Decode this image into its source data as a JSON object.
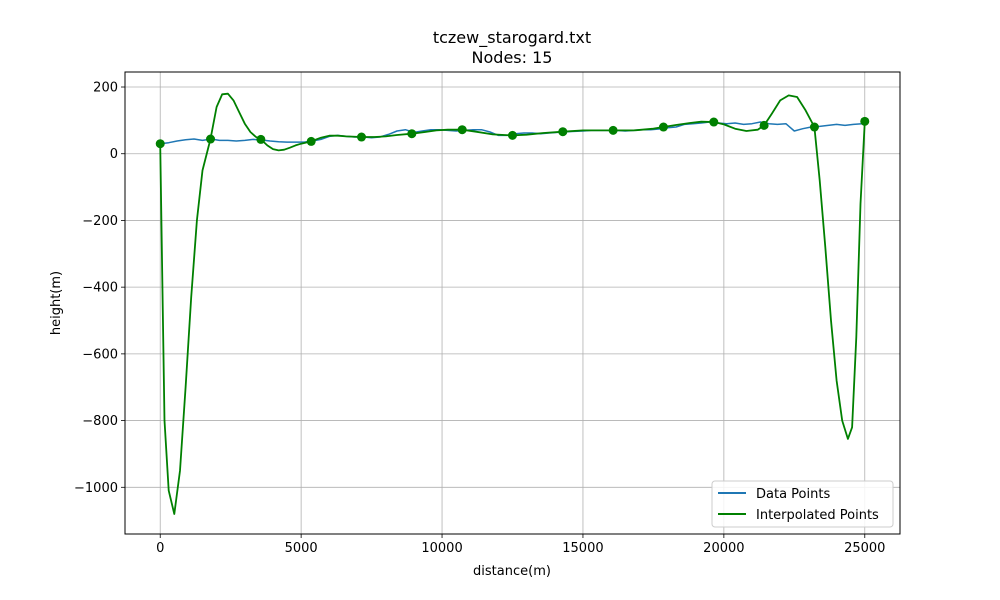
{
  "chart_data": {
    "type": "line",
    "title": "tczew_starogard.txt",
    "subtitle": "Nodes: 15",
    "xlabel": "distance(m)",
    "ylabel": "height(m)",
    "xlim": [
      -1250,
      26250
    ],
    "ylim": [
      -1140,
      245
    ],
    "x_ticks": [
      0,
      5000,
      10000,
      15000,
      20000,
      25000
    ],
    "y_ticks": [
      200,
      0,
      -200,
      -400,
      -600,
      -800,
      -1000
    ],
    "grid": true,
    "legend": "lower-right",
    "colors": {
      "data_points": "#1f77b4",
      "interpolated": "#008000",
      "grid": "#b0b0b0"
    },
    "series": [
      {
        "name": "Data Points",
        "x": [
          0,
          300,
          600,
          900,
          1200,
          1500,
          1800,
          2100,
          2400,
          2700,
          3000,
          3300,
          3600,
          3900,
          4200,
          4500,
          4800,
          5100,
          5400,
          5700,
          6000,
          6300,
          6600,
          6900,
          7200,
          7500,
          7800,
          8100,
          8400,
          8700,
          9000,
          9300,
          9600,
          9900,
          10200,
          10500,
          10800,
          11100,
          11400,
          11700,
          12000,
          12300,
          12600,
          12900,
          13200,
          13500,
          13800,
          14100,
          14400,
          14700,
          15000,
          15300,
          15600,
          15900,
          16200,
          16500,
          16800,
          17100,
          17400,
          17700,
          18000,
          18300,
          18600,
          18900,
          19200,
          19500,
          19800,
          20100,
          20400,
          20700,
          21000,
          21300,
          21600,
          21900,
          22200,
          22500,
          22800,
          23100,
          23400,
          23700,
          24000,
          24300,
          24600,
          24900,
          25000
        ],
        "y": [
          30,
          33,
          38,
          42,
          44,
          40,
          44,
          40,
          40,
          38,
          40,
          43,
          41,
          38,
          36,
          35,
          35,
          35,
          38,
          43,
          52,
          55,
          52,
          50,
          50,
          48,
          50,
          58,
          68,
          72,
          64,
          68,
          72,
          72,
          70,
          68,
          70,
          72,
          72,
          65,
          55,
          55,
          60,
          62,
          62,
          60,
          62,
          64,
          66,
          67,
          68,
          70,
          70,
          70,
          70,
          68,
          70,
          72,
          72,
          74,
          78,
          80,
          88,
          90,
          92,
          95,
          92,
          90,
          92,
          88,
          90,
          95,
          90,
          88,
          90,
          68,
          75,
          80,
          82,
          85,
          88,
          85,
          88,
          90,
          97
        ]
      },
      {
        "name": "Interpolated Points",
        "nodes_x": [
          0,
          1785,
          3571,
          5357,
          7142,
          8928,
          10714,
          12500,
          14285,
          16071,
          17857,
          19642,
          21428,
          23214,
          25000
        ],
        "nodes_y": [
          30,
          44,
          43,
          37,
          50,
          60,
          72,
          55,
          66,
          70,
          80,
          95,
          85,
          80,
          97
        ],
        "x": [
          0,
          150,
          300,
          500,
          700,
          900,
          1100,
          1300,
          1500,
          1785,
          2000,
          2200,
          2400,
          2600,
          2800,
          3000,
          3200,
          3400,
          3571,
          3800,
          4000,
          4200,
          4400,
          4600,
          4800,
          5000,
          5357,
          5700,
          6000,
          6300,
          6600,
          7142,
          7600,
          8000,
          8400,
          8928,
          9400,
          9800,
          10200,
          10714,
          11200,
          11800,
          12500,
          13000,
          13600,
          14285,
          15000,
          16071,
          16800,
          17500,
          17857,
          18300,
          18800,
          19200,
          19642,
          20000,
          20400,
          20800,
          21200,
          21428,
          21700,
          22000,
          22300,
          22600,
          22900,
          23214,
          23400,
          23600,
          23800,
          24000,
          24200,
          24400,
          24550,
          24700,
          24850,
          25000
        ],
        "y": [
          30,
          -800,
          -1010,
          -1080,
          -950,
          -700,
          -430,
          -200,
          -50,
          44,
          140,
          178,
          180,
          160,
          125,
          90,
          65,
          50,
          43,
          25,
          14,
          10,
          12,
          18,
          25,
          30,
          37,
          48,
          54,
          54,
          52,
          50,
          50,
          52,
          56,
          60,
          65,
          70,
          72,
          72,
          66,
          58,
          55,
          57,
          62,
          66,
          70,
          70,
          70,
          75,
          80,
          86,
          92,
          96,
          95,
          88,
          75,
          68,
          72,
          85,
          120,
          160,
          175,
          170,
          130,
          80,
          -80,
          -280,
          -500,
          -680,
          -800,
          -855,
          -820,
          -550,
          -150,
          97
        ]
      }
    ]
  }
}
